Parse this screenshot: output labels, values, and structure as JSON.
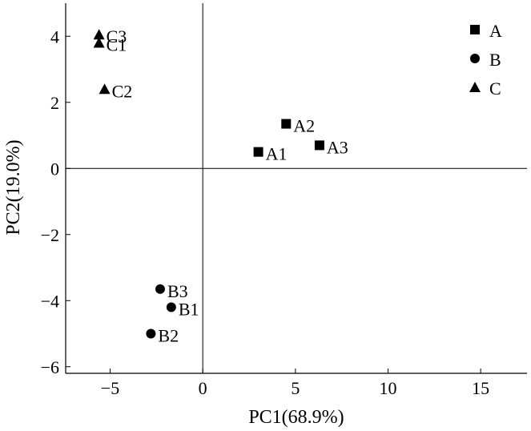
{
  "chart_data": {
    "type": "scatter",
    "title": "",
    "xlabel": "PC1(68.9%)",
    "ylabel": "PC2(19.0%)",
    "xlim": [
      -7.4,
      17.5
    ],
    "ylim": [
      -6.2,
      5
    ],
    "xticks": [
      -5,
      0,
      5,
      10,
      15
    ],
    "yticks": [
      -6,
      -4,
      -2,
      0,
      2,
      4
    ],
    "xtick_labels": [
      "−5",
      "0",
      "5",
      "10",
      "15"
    ],
    "ytick_labels": [
      "−6",
      "−4",
      "−2",
      "0",
      "2",
      "4"
    ],
    "zero_lines": true,
    "grid": false,
    "legend_position": "top-right",
    "series": [
      {
        "name": "A",
        "marker": "square",
        "points": [
          {
            "label": "A1",
            "x": 3.0,
            "y": 0.5
          },
          {
            "label": "A2",
            "x": 4.5,
            "y": 1.35
          },
          {
            "label": "A3",
            "x": 6.3,
            "y": 0.7
          }
        ]
      },
      {
        "name": "B",
        "marker": "circle",
        "points": [
          {
            "label": "B1",
            "x": -1.7,
            "y": -4.2
          },
          {
            "label": "B2",
            "x": -2.8,
            "y": -5.0
          },
          {
            "label": "B3",
            "x": -2.3,
            "y": -3.65
          }
        ]
      },
      {
        "name": "C",
        "marker": "triangle",
        "points": [
          {
            "label": "C1",
            "x": -5.6,
            "y": 3.8
          },
          {
            "label": "C2",
            "x": -5.3,
            "y": 2.4
          },
          {
            "label": "C3",
            "x": -5.6,
            "y": 4.05
          }
        ]
      }
    ]
  }
}
